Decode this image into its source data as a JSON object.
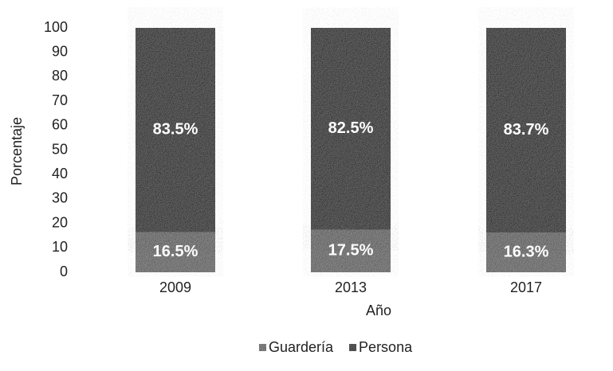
{
  "chart_data": {
    "type": "stacked_bar",
    "xlabel": "Año",
    "ylabel": "Porcentaje",
    "categories": [
      "2009",
      "2013",
      "2017"
    ],
    "series": [
      {
        "name": "Guardería",
        "color": "#8c8c8c",
        "values": [
          16.5,
          17.5,
          16.3
        ],
        "value_labels": [
          "16.5%",
          "17.5%",
          "16.3%"
        ]
      },
      {
        "name": "Persona",
        "color": "#6f6f6f",
        "values": [
          83.5,
          82.5,
          83.7
        ],
        "value_labels": [
          "83.5%",
          "82.5%",
          "83.7%"
        ]
      }
    ],
    "ylim": [
      0,
      100
    ],
    "yticks": [
      0,
      10,
      20,
      30,
      40,
      50,
      60,
      70,
      80,
      90,
      100
    ],
    "grid": false,
    "legend": "bottom"
  }
}
